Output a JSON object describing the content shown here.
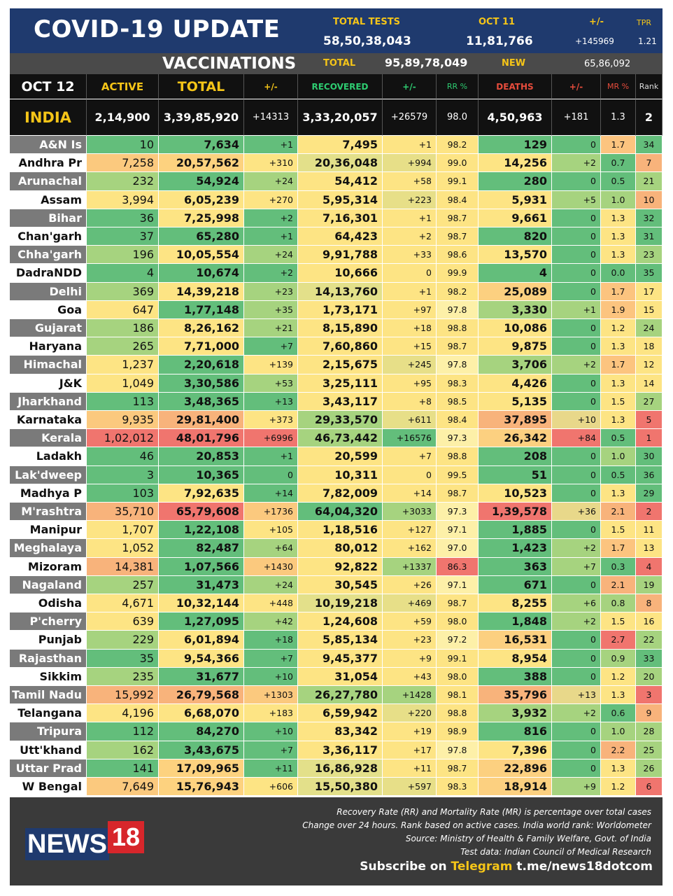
{
  "header": {
    "title": "COVID-19 UPDATE",
    "total_tests_label": "TOTAL TESTS",
    "total_tests": "58,50,38,043",
    "date_tests_label": "OCT 11",
    "date_tests": "11,81,766",
    "change_label": "+/-",
    "change": "+145969",
    "tpr_label": "TPR",
    "tpr": "1.21"
  },
  "vaccinations": {
    "label": "VACCINATIONS",
    "total_label": "TOTAL",
    "total": "95,89,78,049",
    "new_label": "NEW",
    "new": "65,86,092"
  },
  "columns": [
    "OCT 12",
    "ACTIVE",
    "TOTAL",
    "+/-",
    "RECOVERED",
    "+/-",
    "RR %",
    "DEATHS",
    "+/-",
    "MR %",
    "Rank"
  ],
  "india": {
    "name": "INDIA",
    "active": "2,14,900",
    "total": "3,39,85,920",
    "total_change": "+14313",
    "recovered": "3,33,20,057",
    "rec_change": "+26579",
    "rr": "98.0",
    "deaths": "4,50,963",
    "death_change": "+181",
    "mr": "1.3",
    "rank": "2"
  },
  "rows": [
    {
      "name": "A&N Is",
      "active": "10",
      "total": "7,634",
      "tc": "+1",
      "rec": "7,495",
      "rc": "+1",
      "rr": "98.2",
      "deaths": "129",
      "dc": "0",
      "mr": "1.7",
      "rank": "34"
    },
    {
      "name": "Andhra Pr",
      "active": "7,258",
      "total": "20,57,562",
      "tc": "+310",
      "rec": "20,36,048",
      "rc": "+994",
      "rr": "99.0",
      "deaths": "14,256",
      "dc": "+2",
      "mr": "0.7",
      "rank": "7"
    },
    {
      "name": "Arunachal",
      "active": "232",
      "total": "54,924",
      "tc": "+24",
      "rec": "54,412",
      "rc": "+58",
      "rr": "99.1",
      "deaths": "280",
      "dc": "0",
      "mr": "0.5",
      "rank": "21"
    },
    {
      "name": "Assam",
      "active": "3,994",
      "total": "6,05,239",
      "tc": "+270",
      "rec": "5,95,314",
      "rc": "+223",
      "rr": "98.4",
      "deaths": "5,931",
      "dc": "+5",
      "mr": "1.0",
      "rank": "10"
    },
    {
      "name": "Bihar",
      "active": "36",
      "total": "7,25,998",
      "tc": "+2",
      "rec": "7,16,301",
      "rc": "+1",
      "rr": "98.7",
      "deaths": "9,661",
      "dc": "0",
      "mr": "1.3",
      "rank": "32"
    },
    {
      "name": "Chan'garh",
      "active": "37",
      "total": "65,280",
      "tc": "+1",
      "rec": "64,423",
      "rc": "+2",
      "rr": "98.7",
      "deaths": "820",
      "dc": "0",
      "mr": "1.3",
      "rank": "31"
    },
    {
      "name": "Chha'garh",
      "active": "196",
      "total": "10,05,554",
      "tc": "+24",
      "rec": "9,91,788",
      "rc": "+33",
      "rr": "98.6",
      "deaths": "13,570",
      "dc": "0",
      "mr": "1.3",
      "rank": "23"
    },
    {
      "name": "DadraNDD",
      "active": "4",
      "total": "10,674",
      "tc": "+2",
      "rec": "10,666",
      "rc": "0",
      "rr": "99.9",
      "deaths": "4",
      "dc": "0",
      "mr": "0.0",
      "rank": "35"
    },
    {
      "name": "Delhi",
      "active": "369",
      "total": "14,39,218",
      "tc": "+23",
      "rec": "14,13,760",
      "rc": "+1",
      "rr": "98.2",
      "deaths": "25,089",
      "dc": "0",
      "mr": "1.7",
      "rank": "17"
    },
    {
      "name": "Goa",
      "active": "647",
      "total": "1,77,148",
      "tc": "+35",
      "rec": "1,73,171",
      "rc": "+97",
      "rr": "97.8",
      "deaths": "3,330",
      "dc": "+1",
      "mr": "1.9",
      "rank": "15"
    },
    {
      "name": "Gujarat",
      "active": "186",
      "total": "8,26,162",
      "tc": "+21",
      "rec": "8,15,890",
      "rc": "+18",
      "rr": "98.8",
      "deaths": "10,086",
      "dc": "0",
      "mr": "1.2",
      "rank": "24"
    },
    {
      "name": "Haryana",
      "active": "265",
      "total": "7,71,000",
      "tc": "+7",
      "rec": "7,60,860",
      "rc": "+15",
      "rr": "98.7",
      "deaths": "9,875",
      "dc": "0",
      "mr": "1.3",
      "rank": "18"
    },
    {
      "name": "Himachal",
      "active": "1,237",
      "total": "2,20,618",
      "tc": "+139",
      "rec": "2,15,675",
      "rc": "+245",
      "rr": "97.8",
      "deaths": "3,706",
      "dc": "+2",
      "mr": "1.7",
      "rank": "12"
    },
    {
      "name": "J&K",
      "active": "1,049",
      "total": "3,30,586",
      "tc": "+53",
      "rec": "3,25,111",
      "rc": "+95",
      "rr": "98.3",
      "deaths": "4,426",
      "dc": "0",
      "mr": "1.3",
      "rank": "14"
    },
    {
      "name": "Jharkhand",
      "active": "113",
      "total": "3,48,365",
      "tc": "+13",
      "rec": "3,43,117",
      "rc": "+8",
      "rr": "98.5",
      "deaths": "5,135",
      "dc": "0",
      "mr": "1.5",
      "rank": "27"
    },
    {
      "name": "Karnataka",
      "active": "9,935",
      "total": "29,81,400",
      "tc": "+373",
      "rec": "29,33,570",
      "rc": "+611",
      "rr": "98.4",
      "deaths": "37,895",
      "dc": "+10",
      "mr": "1.3",
      "rank": "5"
    },
    {
      "name": "Kerala",
      "active": "1,02,012",
      "total": "48,01,796",
      "tc": "+6996",
      "rec": "46,73,442",
      "rc": "+16576",
      "rr": "97.3",
      "deaths": "26,342",
      "dc": "+84",
      "mr": "0.5",
      "rank": "1"
    },
    {
      "name": "Ladakh",
      "active": "46",
      "total": "20,853",
      "tc": "+1",
      "rec": "20,599",
      "rc": "+7",
      "rr": "98.8",
      "deaths": "208",
      "dc": "0",
      "mr": "1.0",
      "rank": "30"
    },
    {
      "name": "Lak'dweep",
      "active": "3",
      "total": "10,365",
      "tc": "0",
      "rec": "10,311",
      "rc": "0",
      "rr": "99.5",
      "deaths": "51",
      "dc": "0",
      "mr": "0.5",
      "rank": "36"
    },
    {
      "name": "Madhya P",
      "active": "103",
      "total": "7,92,635",
      "tc": "+14",
      "rec": "7,82,009",
      "rc": "+14",
      "rr": "98.7",
      "deaths": "10,523",
      "dc": "0",
      "mr": "1.3",
      "rank": "29"
    },
    {
      "name": "M'rashtra",
      "active": "35,710",
      "total": "65,79,608",
      "tc": "+1736",
      "rec": "64,04,320",
      "rc": "+3033",
      "rr": "97.3",
      "deaths": "1,39,578",
      "dc": "+36",
      "mr": "2.1",
      "rank": "2"
    },
    {
      "name": "Manipur",
      "active": "1,707",
      "total": "1,22,108",
      "tc": "+105",
      "rec": "1,18,516",
      "rc": "+127",
      "rr": "97.1",
      "deaths": "1,885",
      "dc": "0",
      "mr": "1.5",
      "rank": "11"
    },
    {
      "name": "Meghalaya",
      "active": "1,052",
      "total": "82,487",
      "tc": "+64",
      "rec": "80,012",
      "rc": "+162",
      "rr": "97.0",
      "deaths": "1,423",
      "dc": "+2",
      "mr": "1.7",
      "rank": "13"
    },
    {
      "name": "Mizoram",
      "active": "14,381",
      "total": "1,07,566",
      "tc": "+1430",
      "rec": "92,822",
      "rc": "+1337",
      "rr": "86.3",
      "deaths": "363",
      "dc": "+7",
      "mr": "0.3",
      "rank": "4"
    },
    {
      "name": "Nagaland",
      "active": "257",
      "total": "31,473",
      "tc": "+24",
      "rec": "30,545",
      "rc": "+26",
      "rr": "97.1",
      "deaths": "671",
      "dc": "0",
      "mr": "2.1",
      "rank": "19"
    },
    {
      "name": "Odisha",
      "active": "4,671",
      "total": "10,32,144",
      "tc": "+448",
      "rec": "10,19,218",
      "rc": "+469",
      "rr": "98.7",
      "deaths": "8,255",
      "dc": "+6",
      "mr": "0.8",
      "rank": "8"
    },
    {
      "name": "P'cherry",
      "active": "639",
      "total": "1,27,095",
      "tc": "+42",
      "rec": "1,24,608",
      "rc": "+59",
      "rr": "98.0",
      "deaths": "1,848",
      "dc": "+2",
      "mr": "1.5",
      "rank": "16"
    },
    {
      "name": "Punjab",
      "active": "229",
      "total": "6,01,894",
      "tc": "+18",
      "rec": "5,85,134",
      "rc": "+23",
      "rr": "97.2",
      "deaths": "16,531",
      "dc": "0",
      "mr": "2.7",
      "rank": "22"
    },
    {
      "name": "Rajasthan",
      "active": "35",
      "total": "9,54,366",
      "tc": "+7",
      "rec": "9,45,377",
      "rc": "+9",
      "rr": "99.1",
      "deaths": "8,954",
      "dc": "0",
      "mr": "0.9",
      "rank": "33"
    },
    {
      "name": "Sikkim",
      "active": "235",
      "total": "31,677",
      "tc": "+10",
      "rec": "31,054",
      "rc": "+43",
      "rr": "98.0",
      "deaths": "388",
      "dc": "0",
      "mr": "1.2",
      "rank": "20"
    },
    {
      "name": "Tamil Nadu",
      "active": "15,992",
      "total": "26,79,568",
      "tc": "+1303",
      "rec": "26,27,780",
      "rc": "+1428",
      "rr": "98.1",
      "deaths": "35,796",
      "dc": "+13",
      "mr": "1.3",
      "rank": "3"
    },
    {
      "name": "Telangana",
      "active": "4,196",
      "total": "6,68,070",
      "tc": "+183",
      "rec": "6,59,942",
      "rc": "+220",
      "rr": "98.8",
      "deaths": "3,932",
      "dc": "+2",
      "mr": "0.6",
      "rank": "9"
    },
    {
      "name": "Tripura",
      "active": "112",
      "total": "84,270",
      "tc": "+10",
      "rec": "83,342",
      "rc": "+19",
      "rr": "98.9",
      "deaths": "816",
      "dc": "0",
      "mr": "1.0",
      "rank": "28"
    },
    {
      "name": "Utt'khand",
      "active": "162",
      "total": "3,43,675",
      "tc": "+7",
      "rec": "3,36,117",
      "rc": "+17",
      "rr": "97.8",
      "deaths": "7,396",
      "dc": "0",
      "mr": "2.2",
      "rank": "25"
    },
    {
      "name": "Uttar Prad",
      "active": "141",
      "total": "17,09,965",
      "tc": "+11",
      "rec": "16,86,928",
      "rc": "+11",
      "rr": "98.7",
      "deaths": "22,896",
      "dc": "0",
      "mr": "1.3",
      "rank": "26"
    },
    {
      "name": "W Bengal",
      "active": "7,649",
      "total": "15,76,943",
      "tc": "+606",
      "rec": "15,50,380",
      "rc": "+597",
      "rr": "98.3",
      "deaths": "18,914",
      "dc": "+9",
      "mr": "1.2",
      "rank": "6"
    }
  ],
  "footer": {
    "notes": [
      "Recovery Rate (RR) and Mortality Rate (MR) is percentage over total cases",
      "Change over 24 hours. Rank based on active cases. India world rank: Worldometer",
      "Source: Ministry of Health & Family Welfare, Govt. of India",
      "Test data: Indian Council of Medical Research"
    ],
    "subscribe_prefix": "Subscribe on",
    "subscribe_platform": "Telegram",
    "subscribe_link": "t.me/news18dotcom",
    "logo_text": "NEWS",
    "logo_number": "18"
  },
  "colors": {
    "header_bg": "#1f3a6e",
    "accent_yellow": "#f5c518",
    "recovered_green": "#2ecc71",
    "deaths_red": "#e74c3c",
    "name_dark_bg": "#7a7a7a",
    "name_light_bg": "#ffffff"
  }
}
